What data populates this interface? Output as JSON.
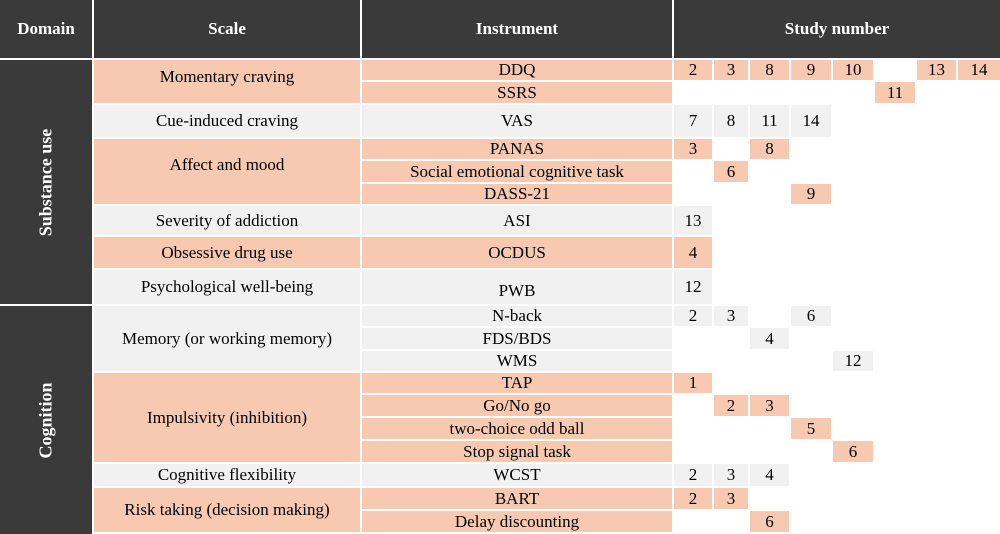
{
  "headers": {
    "domain": "Domain",
    "scale": "Scale",
    "instrument": "Instrument",
    "study": "Study number"
  },
  "domains": {
    "substance": "Substance use",
    "cognition": "Cognition"
  },
  "scales": {
    "momentary": "Momentary craving",
    "cue": "Cue-induced craving",
    "affect": "Affect and mood",
    "severity": "Severity of addiction",
    "obsessive": "Obsessive drug use",
    "pwb": "Psychological well-being",
    "memory": "Memory (or working memory)",
    "impulsivity": "Impulsivity (inhibition)",
    "flexibility": "Cognitive flexibility",
    "risk": "Risk taking (decision making)"
  },
  "instruments": {
    "ddq": "DDQ",
    "ssrs": "SSRS",
    "vas": "VAS",
    "panas": "PANAS",
    "social": "Social emotional cognitive task",
    "dass": "DASS-21",
    "asi": "ASI",
    "ocdus": "OCDUS",
    "pwb": "PWB",
    "nback": "N-back",
    "fds": "FDS/BDS",
    "wms": "WMS",
    "tap": "TAP",
    "gonogo": "Go/No go",
    "oddball": "two-choice odd ball",
    "stop": "Stop signal task",
    "wcst": "WCST",
    "bart": "BART",
    "delay": "Delay discounting"
  },
  "studies": {
    "ddq": [
      "2",
      "3",
      "8",
      "9",
      "10",
      "13",
      "14"
    ],
    "ssrs": [
      "11"
    ],
    "vas": [
      "7",
      "8",
      "11",
      "14"
    ],
    "panas": [
      "3",
      "8"
    ],
    "social": [
      "6"
    ],
    "dass": [
      "9"
    ],
    "asi": [
      "13"
    ],
    "ocdus": [
      "4"
    ],
    "pwb": [
      "12"
    ],
    "nback": [
      "2",
      "3",
      "6"
    ],
    "fds": [
      "4"
    ],
    "wms": [
      "12"
    ],
    "tap": [
      "1"
    ],
    "gonogo": [
      "2",
      "3"
    ],
    "oddball": [
      "5"
    ],
    "stop": [
      "6"
    ],
    "wcst": [
      "2",
      "3",
      "4"
    ],
    "bart": [
      "2",
      "3"
    ],
    "delay": [
      "6"
    ]
  }
}
